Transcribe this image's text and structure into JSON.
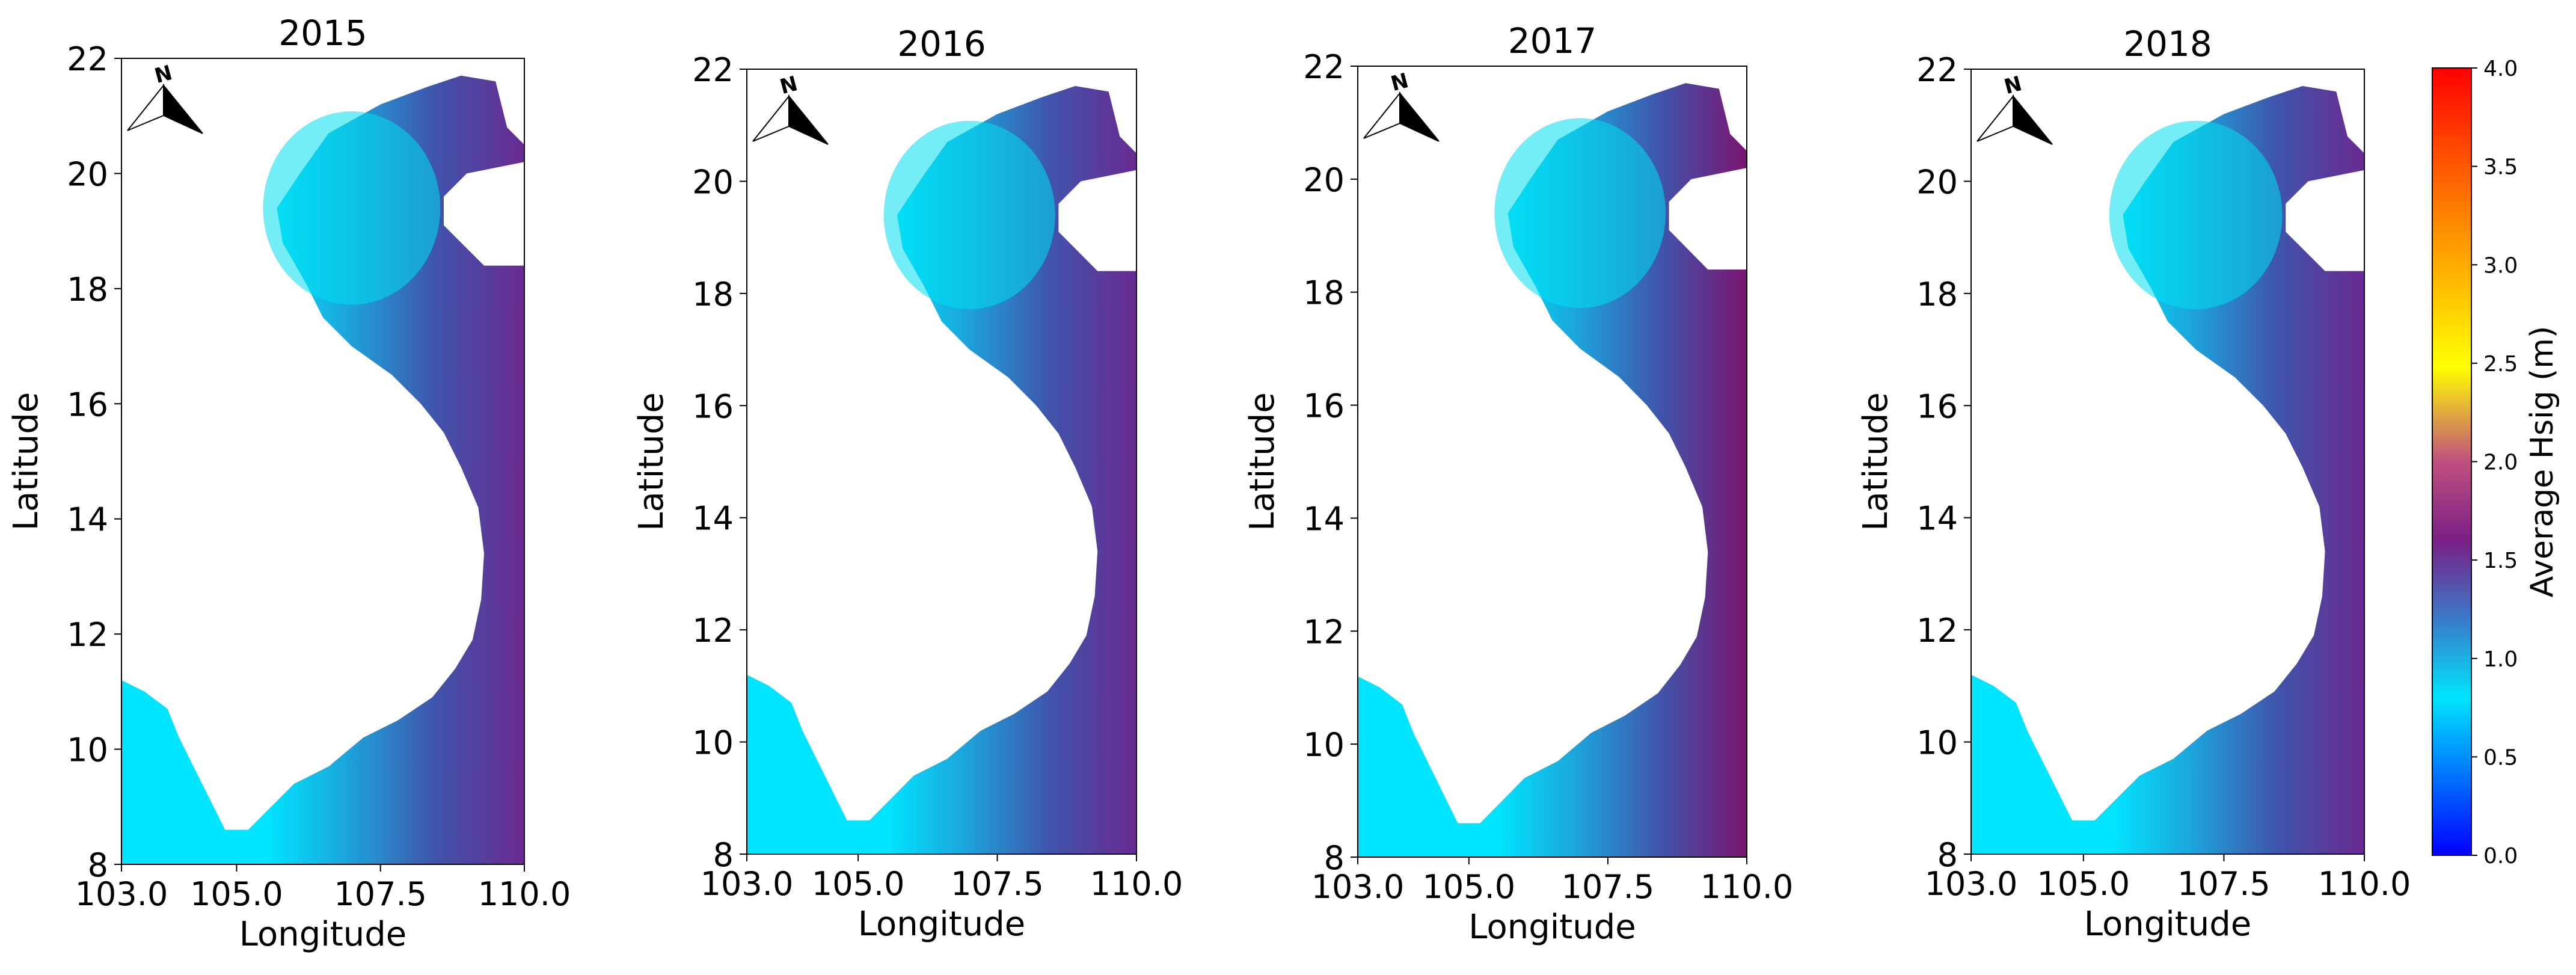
{
  "chart_data": {
    "type": "heatmap",
    "xlabel": "Longitude",
    "ylabel": "Latitude",
    "xlim": [
      103.0,
      110.0
    ],
    "ylim": [
      8,
      22
    ],
    "x_ticks": [
      "103.0",
      "105.0",
      "107.5",
      "110.0"
    ],
    "y_ticks": [
      "8",
      "10",
      "12",
      "14",
      "16",
      "18",
      "20",
      "22"
    ],
    "north_arrow_label": "N",
    "panels": [
      {
        "title": "2015",
        "max_offshore_hsig": 1.55
      },
      {
        "title": "2016",
        "max_offshore_hsig": 1.6
      },
      {
        "title": "2017",
        "max_offshore_hsig": 1.7
      },
      {
        "title": "2018",
        "max_offshore_hsig": 1.6
      }
    ],
    "colorbar": {
      "label": "Average Hsig (m)",
      "range": [
        0.0,
        4.0
      ],
      "ticks": [
        "0.0",
        "0.5",
        "1.0",
        "1.5",
        "2.0",
        "2.5",
        "3.0",
        "3.5",
        "4.0"
      ],
      "colors": [
        "#0000ff",
        "#00e5ff",
        "#4b4fb0",
        "#7a1f86",
        "#ffff00",
        "#ff8c00",
        "#ff0000"
      ]
    }
  }
}
